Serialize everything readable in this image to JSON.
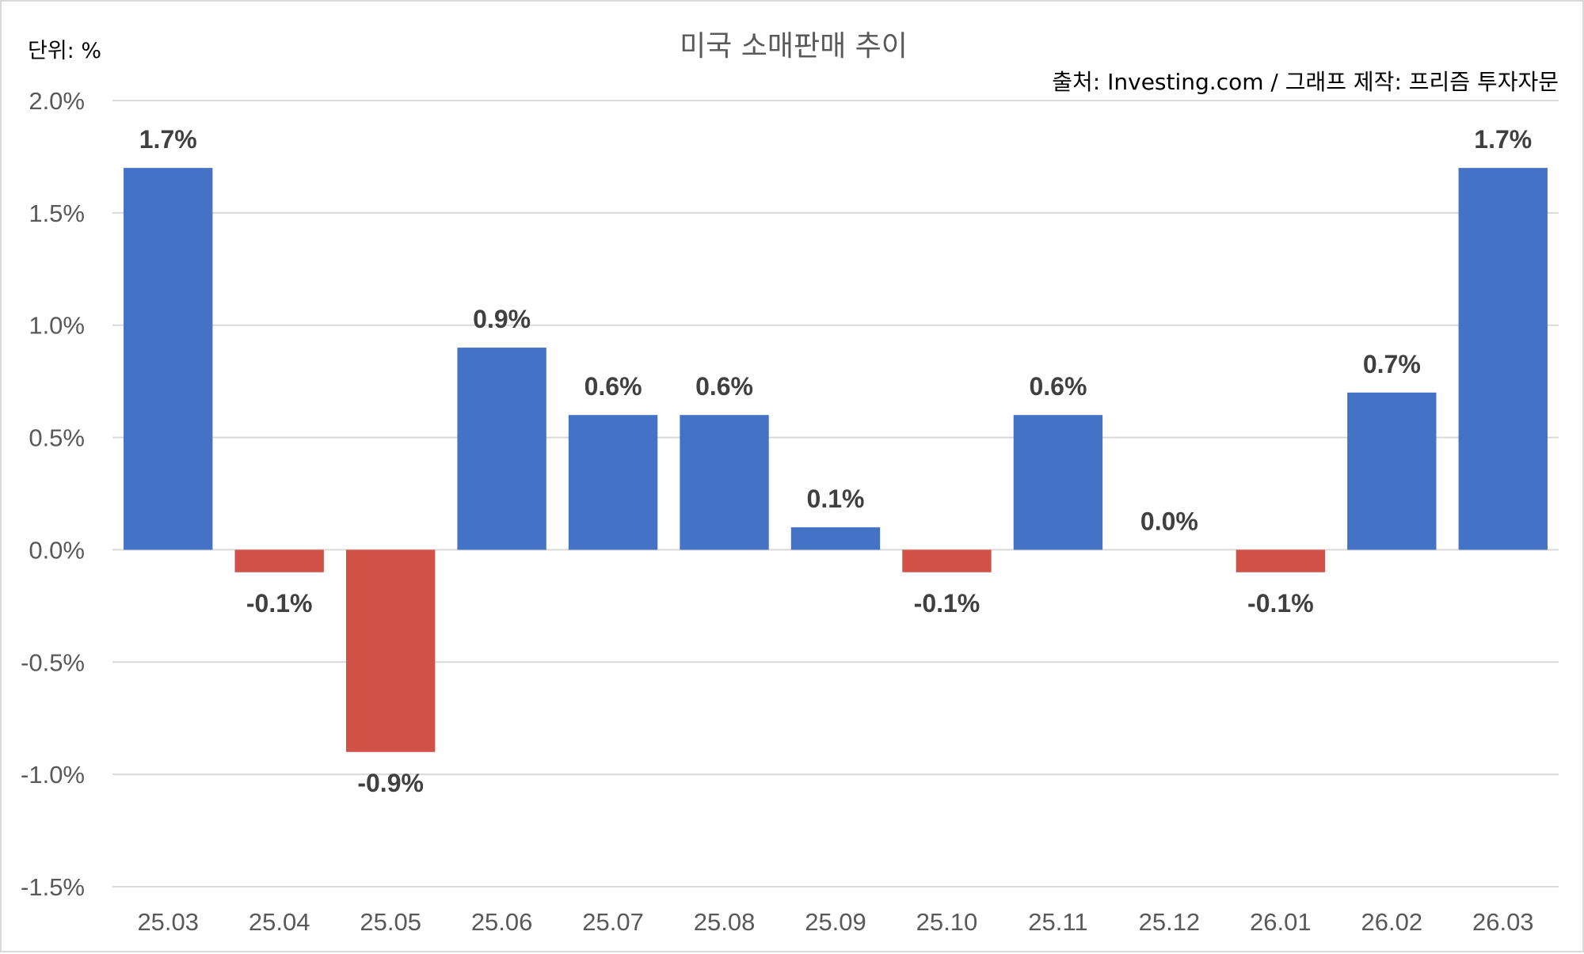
{
  "chart_data": {
    "type": "bar",
    "title": "미국 소매판매 추이",
    "unit_label": "단위: %",
    "source_note": "출처: Investing.com / 그래프 제작: 프리즘 투자자문",
    "categories": [
      "25.03",
      "25.04",
      "25.05",
      "25.06",
      "25.07",
      "25.08",
      "25.09",
      "25.10",
      "25.11",
      "25.12",
      "26.01",
      "26.02",
      "26.03"
    ],
    "values": [
      1.7,
      -0.1,
      -0.9,
      0.9,
      0.6,
      0.6,
      0.1,
      -0.1,
      0.6,
      0.0,
      -0.1,
      0.7,
      1.7
    ],
    "data_labels": [
      "1.7%",
      "-0.1%",
      "-0.9%",
      "0.9%",
      "0.6%",
      "0.6%",
      "0.1%",
      "-0.1%",
      "0.6%",
      "0.0%",
      "-0.1%",
      "0.7%",
      "1.7%"
    ],
    "ylim": [
      -1.5,
      2.0
    ],
    "yticks": [
      2.0,
      1.5,
      1.0,
      0.5,
      0.0,
      -0.5,
      -1.0,
      -1.5
    ],
    "ytick_labels": [
      "2.0%",
      "1.5%",
      "1.0%",
      "0.5%",
      "0.0%",
      "-0.5%",
      "-1.0%",
      "-1.5%"
    ],
    "grid": true,
    "colors": {
      "positive": "#4472c4",
      "negative": "#d05146",
      "gridline": "#d9d9d9"
    }
  }
}
